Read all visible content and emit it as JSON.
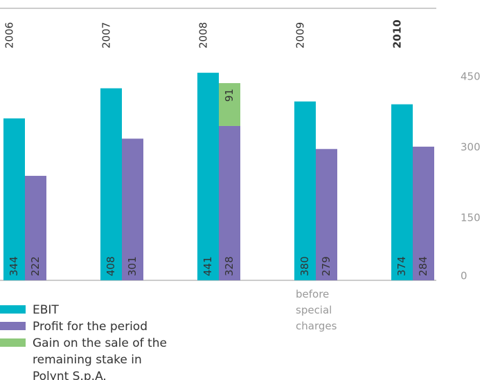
{
  "chart_data": {
    "type": "bar",
    "categories": [
      "2006",
      "2007",
      "2008",
      "2009",
      "2010"
    ],
    "highlight": 4,
    "series": [
      {
        "name": "EBIT",
        "color": "#00b5c8",
        "values": [
          344,
          408,
          441,
          380,
          374
        ]
      },
      {
        "name": "Profit for the period",
        "color": "#7f74b8",
        "values": [
          222,
          301,
          328,
          279,
          284
        ]
      },
      {
        "name": "Gain on the sale of the remaining stake in Polynt S.p.A.",
        "color": "#8dc97a",
        "values": [
          null,
          null,
          91,
          null,
          null
        ],
        "stack_on": 1
      }
    ],
    "annotation": "before special charges",
    "ylim": [
      0,
      450
    ],
    "yticks": [
      0,
      150,
      300,
      450
    ]
  }
}
